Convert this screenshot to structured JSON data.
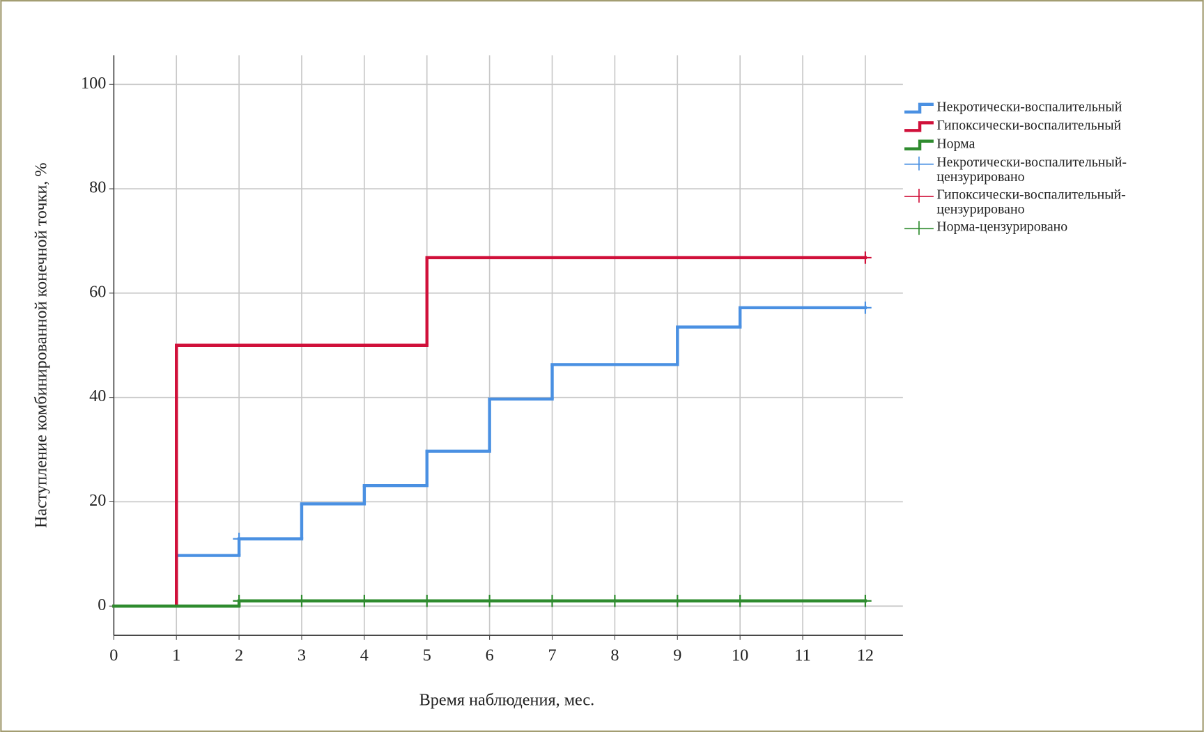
{
  "chart_data": {
    "type": "step",
    "x_label": "Время наблюдения, мес.",
    "y_label": "Наступление комбинированной конечной точки, %",
    "xlim": [
      0,
      12.6
    ],
    "ylim": [
      -5.6,
      105.6
    ],
    "xticks": [
      0,
      1,
      2,
      3,
      4,
      5,
      6,
      7,
      8,
      9,
      10,
      11,
      12
    ],
    "yticks": [
      0,
      20,
      40,
      60,
      80,
      100
    ],
    "grid": true,
    "legend": "right",
    "series": [
      {
        "name": "Некротически-воспалительный",
        "color": "#4a90e2",
        "x": [
          0,
          1,
          2,
          3,
          4,
          5,
          6,
          7,
          9,
          10,
          12
        ],
        "values": [
          0,
          9.7,
          12.9,
          19.6,
          23.1,
          29.7,
          39.7,
          46.3,
          53.5,
          57.2,
          57.2
        ]
      },
      {
        "name": "Гипоксически-воспалительный",
        "color": "#d0103a",
        "x": [
          0,
          1,
          5,
          12
        ],
        "values": [
          0,
          50,
          66.8,
          66.8
        ]
      },
      {
        "name": "Норма",
        "color": "#2e8b2e",
        "x": [
          0,
          2,
          12
        ],
        "values": [
          0,
          1,
          1
        ]
      }
    ],
    "censored": [
      {
        "name": "Некротически-воспалительный-цензурировано",
        "color": "#4a90e2",
        "x": [
          2,
          12
        ],
        "values": [
          12.9,
          57.2
        ]
      },
      {
        "name": "Гипоксически-воспалительный-цензурировано",
        "color": "#d0103a",
        "x": [
          12
        ],
        "values": [
          66.8
        ]
      },
      {
        "name": "Норма-цензурировано",
        "color": "#2e8b2e",
        "x": [
          2,
          3,
          4,
          5,
          6,
          7,
          8,
          9,
          10,
          12
        ],
        "values": [
          1,
          1,
          1,
          1,
          1,
          1,
          1,
          1,
          1,
          1
        ]
      }
    ]
  }
}
